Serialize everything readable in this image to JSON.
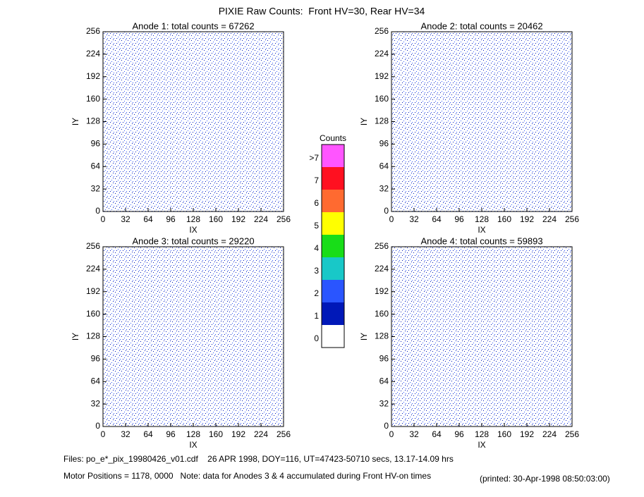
{
  "title": "PIXIE Raw Counts:  Front HV=30, Rear HV=34",
  "chart_data": [
    {
      "type": "heatmap",
      "title": "Anode 1: total counts = 67262",
      "xlabel": "IX",
      "ylabel": "IY",
      "xlim": [
        0,
        256
      ],
      "ylim": [
        0,
        256
      ],
      "xticks": [
        0,
        32,
        64,
        96,
        128,
        160,
        192,
        224,
        256
      ],
      "yticks": [
        0,
        32,
        64,
        96,
        128,
        160,
        192,
        224,
        256
      ]
    },
    {
      "type": "heatmap",
      "title": "Anode 2: total counts = 20462",
      "xlabel": "IX",
      "ylabel": "IY",
      "xlim": [
        0,
        256
      ],
      "ylim": [
        0,
        256
      ],
      "xticks": [
        0,
        32,
        64,
        96,
        128,
        160,
        192,
        224,
        256
      ],
      "yticks": [
        0,
        32,
        64,
        96,
        128,
        160,
        192,
        224,
        256
      ]
    },
    {
      "type": "heatmap",
      "title": "Anode 3: total counts = 29220",
      "xlabel": "IX",
      "ylabel": "IY",
      "xlim": [
        0,
        256
      ],
      "ylim": [
        0,
        256
      ],
      "xticks": [
        0,
        32,
        64,
        96,
        128,
        160,
        192,
        224,
        256
      ],
      "yticks": [
        0,
        32,
        64,
        96,
        128,
        160,
        192,
        224,
        256
      ]
    },
    {
      "type": "heatmap",
      "title": "Anode 4: total counts = 59893",
      "xlabel": "IX",
      "ylabel": "IY",
      "xlim": [
        0,
        256
      ],
      "ylim": [
        0,
        256
      ],
      "xticks": [
        0,
        32,
        64,
        96,
        128,
        160,
        192,
        224,
        256
      ],
      "yticks": [
        0,
        32,
        64,
        96,
        128,
        160,
        192,
        224,
        256
      ]
    }
  ],
  "colorbar": {
    "title": "Counts",
    "labels": [
      "0",
      "1",
      "2",
      "3",
      "4",
      "5",
      "6",
      "7",
      ">7"
    ],
    "colors": [
      "#ffffff",
      "#0018b8",
      "#2a55ff",
      "#18c8c8",
      "#18dd18",
      "#ffff00",
      "#ff6a30",
      "#ff1020",
      "#ff55ff"
    ]
  },
  "footer": {
    "files": "Files: po_e*_pix_19980426_v01.cdf    26 APR 1998, DOY=116, UT=47423-50710 secs, 13.17-14.09 hrs",
    "motor": "Motor Positions = 1178, 0000   Note: data for Anodes 3 & 4 accumulated during Front HV-on times",
    "printed": "(printed: 30-Apr-1998 08:50:03:00)"
  }
}
